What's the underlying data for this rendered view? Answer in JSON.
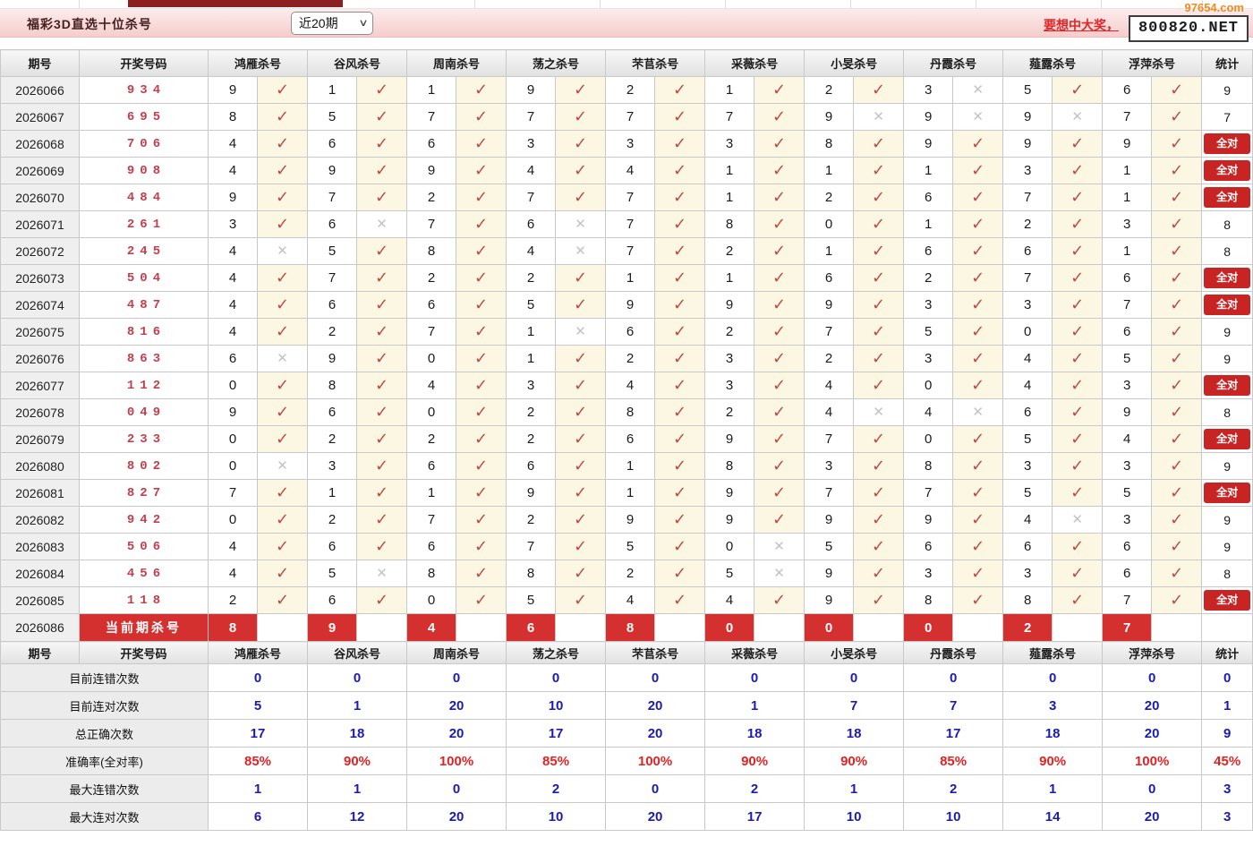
{
  "topbar": {
    "title": "福彩3D直选十位杀号",
    "range_select": "近20期",
    "promo_link": "要想中大奖，",
    "promo_box": "800820.NET",
    "watermark": "97654.com"
  },
  "icons": {
    "check": "✓",
    "cross": "✕",
    "select_arrow": "∨"
  },
  "colors": {
    "bar_pink": "#f6cdcd",
    "accent_red": "#d43030",
    "badge_red": "#c92424",
    "check_red": "#bf4a44",
    "cross_grey": "#c3c3c3",
    "stat_blue": "#1b1bb4",
    "stat_red": "#e32222",
    "result_red": "#c2404e"
  },
  "table": {
    "period_header": "期号",
    "result_header": "开奖号码",
    "stat_header": "统计",
    "experts": [
      "鸿雁杀号",
      "谷风杀号",
      "周南杀号",
      "荡之杀号",
      "芣苢杀号",
      "采薇杀号",
      "小旻杀号",
      "丹霞杀号",
      "薤露杀号",
      "浮萍杀号"
    ],
    "all_correct_label": "全对",
    "current_label": "当前期杀号",
    "current_period": "2026086",
    "current_kills": [
      "8",
      "9",
      "4",
      "6",
      "8",
      "0",
      "0",
      "0",
      "2",
      "7"
    ],
    "rows": [
      {
        "period": "2026066",
        "result": "934",
        "kills": [
          [
            "9",
            1
          ],
          [
            "1",
            1
          ],
          [
            "1",
            1
          ],
          [
            "9",
            1
          ],
          [
            "2",
            1
          ],
          [
            "1",
            1
          ],
          [
            "2",
            1
          ],
          [
            "3",
            0
          ],
          [
            "5",
            1
          ],
          [
            "6",
            1
          ]
        ],
        "stat": "9"
      },
      {
        "period": "2026067",
        "result": "695",
        "kills": [
          [
            "8",
            1
          ],
          [
            "5",
            1
          ],
          [
            "7",
            1
          ],
          [
            "7",
            1
          ],
          [
            "7",
            1
          ],
          [
            "7",
            1
          ],
          [
            "9",
            0
          ],
          [
            "9",
            0
          ],
          [
            "9",
            0
          ],
          [
            "7",
            1
          ]
        ],
        "stat": "7"
      },
      {
        "period": "2026068",
        "result": "706",
        "kills": [
          [
            "4",
            1
          ],
          [
            "6",
            1
          ],
          [
            "6",
            1
          ],
          [
            "3",
            1
          ],
          [
            "3",
            1
          ],
          [
            "3",
            1
          ],
          [
            "8",
            1
          ],
          [
            "9",
            1
          ],
          [
            "9",
            1
          ],
          [
            "9",
            1
          ]
        ],
        "stat": "全对"
      },
      {
        "period": "2026069",
        "result": "908",
        "kills": [
          [
            "4",
            1
          ],
          [
            "9",
            1
          ],
          [
            "9",
            1
          ],
          [
            "4",
            1
          ],
          [
            "4",
            1
          ],
          [
            "1",
            1
          ],
          [
            "1",
            1
          ],
          [
            "1",
            1
          ],
          [
            "3",
            1
          ],
          [
            "1",
            1
          ]
        ],
        "stat": "全对"
      },
      {
        "period": "2026070",
        "result": "484",
        "kills": [
          [
            "9",
            1
          ],
          [
            "7",
            1
          ],
          [
            "2",
            1
          ],
          [
            "7",
            1
          ],
          [
            "7",
            1
          ],
          [
            "1",
            1
          ],
          [
            "2",
            1
          ],
          [
            "6",
            1
          ],
          [
            "7",
            1
          ],
          [
            "1",
            1
          ]
        ],
        "stat": "全对"
      },
      {
        "period": "2026071",
        "result": "261",
        "kills": [
          [
            "3",
            1
          ],
          [
            "6",
            0
          ],
          [
            "7",
            1
          ],
          [
            "6",
            0
          ],
          [
            "7",
            1
          ],
          [
            "8",
            1
          ],
          [
            "0",
            1
          ],
          [
            "1",
            1
          ],
          [
            "2",
            1
          ],
          [
            "3",
            1
          ]
        ],
        "stat": "8"
      },
      {
        "period": "2026072",
        "result": "245",
        "kills": [
          [
            "4",
            0
          ],
          [
            "5",
            1
          ],
          [
            "8",
            1
          ],
          [
            "4",
            0
          ],
          [
            "7",
            1
          ],
          [
            "2",
            1
          ],
          [
            "1",
            1
          ],
          [
            "6",
            1
          ],
          [
            "6",
            1
          ],
          [
            "1",
            1
          ]
        ],
        "stat": "8"
      },
      {
        "period": "2026073",
        "result": "504",
        "kills": [
          [
            "4",
            1
          ],
          [
            "7",
            1
          ],
          [
            "2",
            1
          ],
          [
            "2",
            1
          ],
          [
            "1",
            1
          ],
          [
            "1",
            1
          ],
          [
            "6",
            1
          ],
          [
            "2",
            1
          ],
          [
            "7",
            1
          ],
          [
            "6",
            1
          ]
        ],
        "stat": "全对"
      },
      {
        "period": "2026074",
        "result": "487",
        "kills": [
          [
            "4",
            1
          ],
          [
            "6",
            1
          ],
          [
            "6",
            1
          ],
          [
            "5",
            1
          ],
          [
            "9",
            1
          ],
          [
            "9",
            1
          ],
          [
            "9",
            1
          ],
          [
            "3",
            1
          ],
          [
            "3",
            1
          ],
          [
            "7",
            1
          ]
        ],
        "stat": "全对"
      },
      {
        "period": "2026075",
        "result": "816",
        "kills": [
          [
            "4",
            1
          ],
          [
            "2",
            1
          ],
          [
            "7",
            1
          ],
          [
            "1",
            0
          ],
          [
            "6",
            1
          ],
          [
            "2",
            1
          ],
          [
            "7",
            1
          ],
          [
            "5",
            1
          ],
          [
            "0",
            1
          ],
          [
            "6",
            1
          ]
        ],
        "stat": "9"
      },
      {
        "period": "2026076",
        "result": "863",
        "kills": [
          [
            "6",
            0
          ],
          [
            "9",
            1
          ],
          [
            "0",
            1
          ],
          [
            "1",
            1
          ],
          [
            "2",
            1
          ],
          [
            "3",
            1
          ],
          [
            "2",
            1
          ],
          [
            "3",
            1
          ],
          [
            "4",
            1
          ],
          [
            "5",
            1
          ]
        ],
        "stat": "9"
      },
      {
        "period": "2026077",
        "result": "112",
        "kills": [
          [
            "0",
            1
          ],
          [
            "8",
            1
          ],
          [
            "4",
            1
          ],
          [
            "3",
            1
          ],
          [
            "4",
            1
          ],
          [
            "3",
            1
          ],
          [
            "4",
            1
          ],
          [
            "0",
            1
          ],
          [
            "4",
            1
          ],
          [
            "3",
            1
          ]
        ],
        "stat": "全对"
      },
      {
        "period": "2026078",
        "result": "049",
        "kills": [
          [
            "9",
            1
          ],
          [
            "6",
            1
          ],
          [
            "0",
            1
          ],
          [
            "2",
            1
          ],
          [
            "8",
            1
          ],
          [
            "2",
            1
          ],
          [
            "4",
            0
          ],
          [
            "4",
            0
          ],
          [
            "6",
            1
          ],
          [
            "9",
            1
          ]
        ],
        "stat": "8"
      },
      {
        "period": "2026079",
        "result": "233",
        "kills": [
          [
            "0",
            1
          ],
          [
            "2",
            1
          ],
          [
            "2",
            1
          ],
          [
            "2",
            1
          ],
          [
            "6",
            1
          ],
          [
            "9",
            1
          ],
          [
            "7",
            1
          ],
          [
            "0",
            1
          ],
          [
            "5",
            1
          ],
          [
            "4",
            1
          ]
        ],
        "stat": "全对"
      },
      {
        "period": "2026080",
        "result": "802",
        "kills": [
          [
            "0",
            0
          ],
          [
            "3",
            1
          ],
          [
            "6",
            1
          ],
          [
            "6",
            1
          ],
          [
            "1",
            1
          ],
          [
            "8",
            1
          ],
          [
            "3",
            1
          ],
          [
            "8",
            1
          ],
          [
            "3",
            1
          ],
          [
            "3",
            1
          ]
        ],
        "stat": "9"
      },
      {
        "period": "2026081",
        "result": "827",
        "kills": [
          [
            "7",
            1
          ],
          [
            "1",
            1
          ],
          [
            "1",
            1
          ],
          [
            "9",
            1
          ],
          [
            "1",
            1
          ],
          [
            "9",
            1
          ],
          [
            "7",
            1
          ],
          [
            "7",
            1
          ],
          [
            "5",
            1
          ],
          [
            "5",
            1
          ]
        ],
        "stat": "全对"
      },
      {
        "period": "2026082",
        "result": "942",
        "kills": [
          [
            "0",
            1
          ],
          [
            "2",
            1
          ],
          [
            "7",
            1
          ],
          [
            "2",
            1
          ],
          [
            "9",
            1
          ],
          [
            "9",
            1
          ],
          [
            "9",
            1
          ],
          [
            "9",
            1
          ],
          [
            "4",
            0
          ],
          [
            "3",
            1
          ]
        ],
        "stat": "9"
      },
      {
        "period": "2026083",
        "result": "506",
        "kills": [
          [
            "4",
            1
          ],
          [
            "6",
            1
          ],
          [
            "6",
            1
          ],
          [
            "7",
            1
          ],
          [
            "5",
            1
          ],
          [
            "0",
            0
          ],
          [
            "5",
            1
          ],
          [
            "6",
            1
          ],
          [
            "6",
            1
          ],
          [
            "6",
            1
          ]
        ],
        "stat": "9"
      },
      {
        "period": "2026084",
        "result": "456",
        "kills": [
          [
            "4",
            1
          ],
          [
            "5",
            0
          ],
          [
            "8",
            1
          ],
          [
            "8",
            1
          ],
          [
            "2",
            1
          ],
          [
            "5",
            0
          ],
          [
            "9",
            1
          ],
          [
            "3",
            1
          ],
          [
            "3",
            1
          ],
          [
            "6",
            1
          ]
        ],
        "stat": "8"
      },
      {
        "period": "2026085",
        "result": "118",
        "kills": [
          [
            "2",
            1
          ],
          [
            "6",
            1
          ],
          [
            "0",
            1
          ],
          [
            "5",
            1
          ],
          [
            "4",
            1
          ],
          [
            "4",
            1
          ],
          [
            "9",
            1
          ],
          [
            "8",
            1
          ],
          [
            "8",
            1
          ],
          [
            "7",
            1
          ]
        ],
        "stat": "全对"
      }
    ],
    "stats": [
      {
        "label": "目前连错次数",
        "values": [
          "0",
          "0",
          "0",
          "0",
          "0",
          "0",
          "0",
          "0",
          "0",
          "0"
        ],
        "total": "0",
        "style": "blue"
      },
      {
        "label": "目前连对次数",
        "values": [
          "5",
          "1",
          "20",
          "10",
          "20",
          "1",
          "7",
          "7",
          "3",
          "20"
        ],
        "total": "1",
        "style": "blue"
      },
      {
        "label": "总正确次数",
        "values": [
          "17",
          "18",
          "20",
          "17",
          "20",
          "18",
          "18",
          "17",
          "18",
          "20"
        ],
        "total": "9",
        "style": "blue"
      },
      {
        "label": "准确率(全对率)",
        "values": [
          "85%",
          "90%",
          "100%",
          "85%",
          "100%",
          "90%",
          "90%",
          "85%",
          "90%",
          "100%"
        ],
        "total": "45%",
        "style": "red"
      },
      {
        "label": "最大连错次数",
        "values": [
          "1",
          "1",
          "0",
          "2",
          "0",
          "2",
          "1",
          "2",
          "1",
          "0"
        ],
        "total": "3",
        "style": "blue"
      },
      {
        "label": "最大连对次数",
        "values": [
          "6",
          "12",
          "20",
          "10",
          "20",
          "17",
          "10",
          "10",
          "14",
          "20"
        ],
        "total": "3",
        "style": "blue"
      }
    ]
  }
}
